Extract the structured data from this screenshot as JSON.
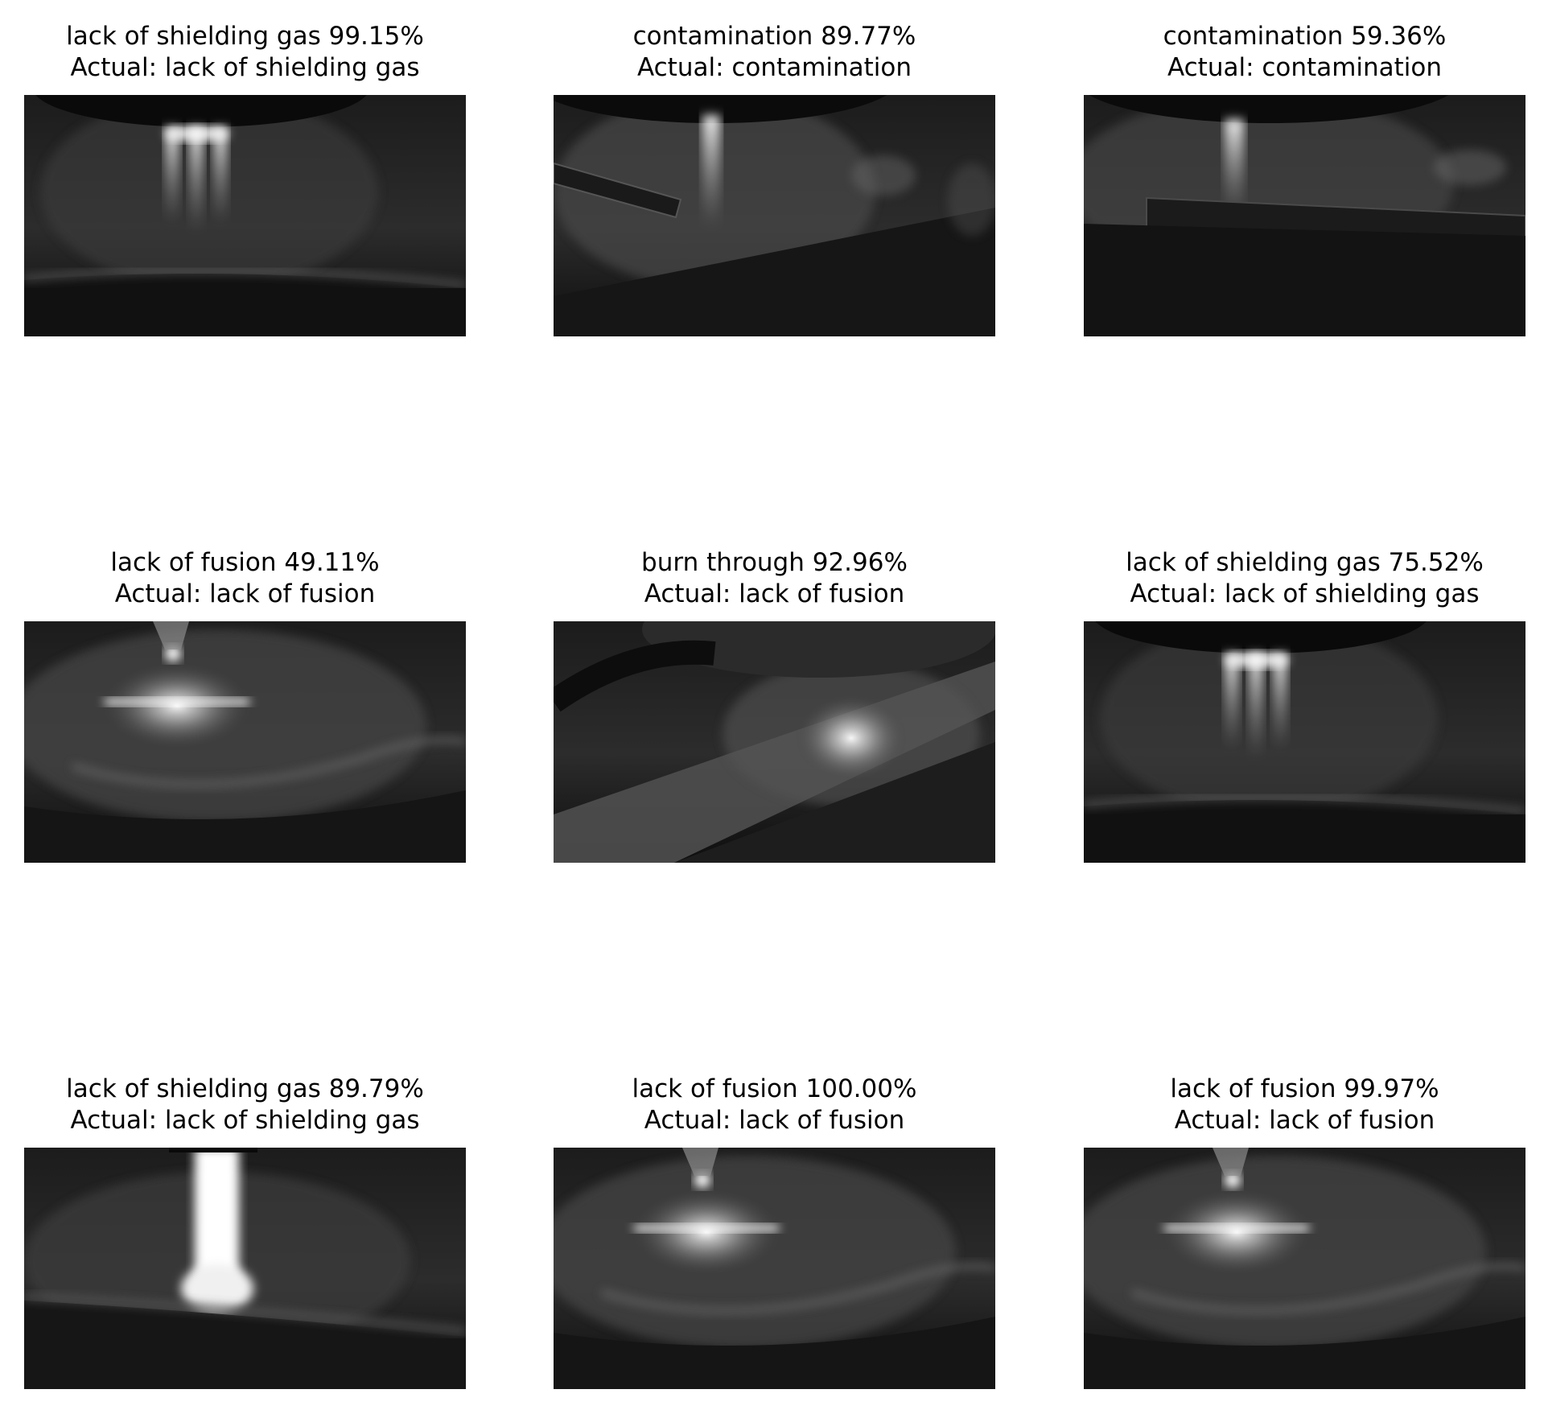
{
  "panels": [
    {
      "prediction": "lack of shielding gas 99.15%",
      "actual": "Actual: lack of shielding gas",
      "scene": "nozzle-gas"
    },
    {
      "prediction": "contamination 89.77%",
      "actual": "Actual: contamination",
      "scene": "rod-left"
    },
    {
      "prediction": "contamination 59.36%",
      "actual": "Actual: contamination",
      "scene": "rod-flat"
    },
    {
      "prediction": "lack of fusion 49.11%",
      "actual": "Actual: lack of fusion",
      "scene": "pool"
    },
    {
      "prediction": "burn through 92.96%",
      "actual": "Actual: lack of fusion",
      "scene": "diagonal"
    },
    {
      "prediction": "lack of shielding gas 75.52%",
      "actual": "Actual: lack of shielding gas",
      "scene": "nozzle-gas"
    },
    {
      "prediction": "lack of shielding gas 89.79%",
      "actual": "Actual: lack of shielding gas",
      "scene": "bright-arc"
    },
    {
      "prediction": "lack of fusion 100.00%",
      "actual": "Actual: lack of fusion",
      "scene": "pool"
    },
    {
      "prediction": "lack of fusion 99.97%",
      "actual": "Actual: lack of fusion",
      "scene": "pool"
    }
  ]
}
